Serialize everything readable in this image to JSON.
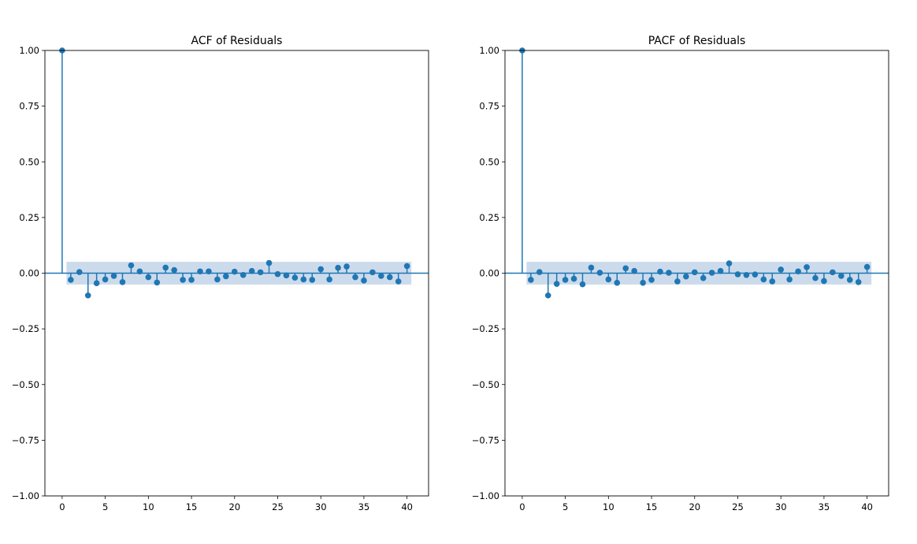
{
  "chart_data": [
    {
      "type": "stem",
      "title": "ACF of Residuals",
      "xlabel": "",
      "ylabel": "",
      "xlim": [
        -2,
        42.5
      ],
      "ylim": [
        -1.0,
        1.0
      ],
      "xticks": [
        0,
        5,
        10,
        15,
        20,
        25,
        30,
        35,
        40
      ],
      "yticks": [
        -1.0,
        -0.75,
        -0.5,
        -0.25,
        0.0,
        0.25,
        0.5,
        0.75,
        1.0
      ],
      "ytick_labels": [
        "−1.00",
        "−0.75",
        "−0.50",
        "−0.25",
        "0.00",
        "0.25",
        "0.50",
        "0.75",
        "1.00"
      ],
      "confidence_band": 0.051,
      "color": "#1f77b4",
      "band_color": "#c6d7ea",
      "lags": [
        0,
        1,
        2,
        3,
        4,
        5,
        6,
        7,
        8,
        9,
        10,
        11,
        12,
        13,
        14,
        15,
        16,
        17,
        18,
        19,
        20,
        21,
        22,
        23,
        24,
        25,
        26,
        27,
        28,
        29,
        30,
        31,
        32,
        33,
        34,
        35,
        36,
        37,
        38,
        39,
        40
      ],
      "values": [
        1.0,
        -0.03,
        0.005,
        -0.1,
        -0.045,
        -0.028,
        -0.012,
        -0.04,
        0.035,
        0.008,
        -0.018,
        -0.042,
        0.025,
        0.014,
        -0.03,
        -0.03,
        0.008,
        0.008,
        -0.028,
        -0.014,
        0.007,
        -0.008,
        0.01,
        0.004,
        0.046,
        -0.004,
        -0.01,
        -0.02,
        -0.028,
        -0.03,
        0.018,
        -0.028,
        0.024,
        0.03,
        -0.018,
        -0.033,
        0.004,
        -0.012,
        -0.018,
        -0.037,
        0.032
      ],
      "grid": false
    },
    {
      "type": "stem",
      "title": "PACF of Residuals",
      "xlabel": "",
      "ylabel": "",
      "xlim": [
        -2,
        42.5
      ],
      "ylim": [
        -1.0,
        1.0
      ],
      "xticks": [
        0,
        5,
        10,
        15,
        20,
        25,
        30,
        35,
        40
      ],
      "yticks": [
        -1.0,
        -0.75,
        -0.5,
        -0.25,
        0.0,
        0.25,
        0.5,
        0.75,
        1.0
      ],
      "ytick_labels": [
        "−1.00",
        "−0.75",
        "−0.50",
        "−0.25",
        "0.00",
        "0.25",
        "0.50",
        "0.75",
        "1.00"
      ],
      "confidence_band": 0.051,
      "color": "#1f77b4",
      "band_color": "#c6d7ea",
      "lags": [
        0,
        1,
        2,
        3,
        4,
        5,
        6,
        7,
        8,
        9,
        10,
        11,
        12,
        13,
        14,
        15,
        16,
        17,
        18,
        19,
        20,
        21,
        22,
        23,
        24,
        25,
        26,
        27,
        28,
        29,
        30,
        31,
        32,
        33,
        34,
        35,
        36,
        37,
        38,
        39,
        40
      ],
      "values": [
        1.0,
        -0.03,
        0.005,
        -0.1,
        -0.048,
        -0.03,
        -0.025,
        -0.05,
        0.025,
        0.002,
        -0.028,
        -0.043,
        0.022,
        0.01,
        -0.043,
        -0.03,
        0.007,
        0.002,
        -0.037,
        -0.015,
        0.004,
        -0.022,
        0.002,
        0.01,
        0.044,
        -0.005,
        -0.008,
        -0.006,
        -0.028,
        -0.037,
        0.016,
        -0.028,
        0.008,
        0.027,
        -0.022,
        -0.035,
        0.004,
        -0.012,
        -0.03,
        -0.04,
        0.028
      ],
      "grid": false
    }
  ]
}
